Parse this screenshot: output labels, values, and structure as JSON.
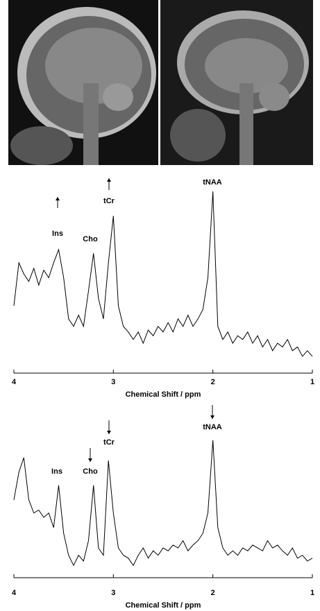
{
  "chart_data": [
    {
      "type": "line",
      "x_label": "Chemical Shift / ppm",
      "x": [
        4.0,
        3.95,
        3.9,
        3.85,
        3.8,
        3.75,
        3.7,
        3.65,
        3.6,
        3.55,
        3.5,
        3.45,
        3.4,
        3.35,
        3.3,
        3.25,
        3.2,
        3.15,
        3.1,
        3.05,
        3.0,
        2.95,
        2.9,
        2.85,
        2.8,
        2.75,
        2.7,
        2.65,
        2.6,
        2.55,
        2.5,
        2.45,
        2.4,
        2.35,
        2.3,
        2.25,
        2.2,
        2.15,
        2.1,
        2.05,
        2.0,
        1.95,
        1.9,
        1.85,
        1.8,
        1.75,
        1.7,
        1.65,
        1.6,
        1.55,
        1.5,
        1.45,
        1.4,
        1.35,
        1.3,
        1.25,
        1.2,
        1.15,
        1.1,
        1.05,
        1.0
      ],
      "values": [
        33,
        56,
        50,
        46,
        53,
        44,
        52,
        48,
        56,
        63,
        48,
        26,
        22,
        28,
        22,
        41,
        61,
        37,
        26,
        56,
        81,
        33,
        22,
        19,
        15,
        19,
        13,
        20,
        17,
        22,
        19,
        24,
        19,
        26,
        22,
        28,
        22,
        26,
        31,
        48,
        94,
        22,
        15,
        19,
        13,
        17,
        15,
        19,
        13,
        17,
        11,
        15,
        9,
        13,
        11,
        15,
        9,
        11,
        6,
        9,
        6
      ],
      "color": "#000000",
      "xlim": [
        4,
        1
      ],
      "ylim": [
        0,
        100
      ],
      "xticks": [
        4,
        3,
        2,
        1
      ],
      "annotations": [
        "Ins",
        "Cho",
        "tCr",
        "tNAA"
      ]
    },
    {
      "type": "line",
      "x_label": "Chemical Shift / ppm",
      "x": [
        4.0,
        3.95,
        3.9,
        3.85,
        3.8,
        3.75,
        3.7,
        3.65,
        3.6,
        3.55,
        3.5,
        3.45,
        3.4,
        3.35,
        3.3,
        3.25,
        3.2,
        3.15,
        3.1,
        3.05,
        3.0,
        2.95,
        2.9,
        2.85,
        2.8,
        2.75,
        2.7,
        2.65,
        2.6,
        2.55,
        2.5,
        2.45,
        2.4,
        2.35,
        2.3,
        2.25,
        2.2,
        2.15,
        2.1,
        2.05,
        2.0,
        1.95,
        1.9,
        1.85,
        1.8,
        1.75,
        1.7,
        1.65,
        1.6,
        1.55,
        1.5,
        1.45,
        1.4,
        1.35,
        1.3,
        1.25,
        1.2,
        1.15,
        1.1,
        1.05,
        1.0
      ],
      "values": [
        52,
        71,
        81,
        52,
        43,
        45,
        40,
        43,
        33,
        62,
        29,
        14,
        7,
        14,
        10,
        24,
        62,
        19,
        14,
        79,
        43,
        19,
        14,
        12,
        7,
        14,
        19,
        12,
        17,
        14,
        19,
        17,
        21,
        19,
        24,
        17,
        21,
        24,
        29,
        43,
        93,
        33,
        19,
        14,
        17,
        14,
        19,
        17,
        21,
        19,
        17,
        24,
        19,
        21,
        17,
        14,
        19,
        12,
        14,
        10,
        12
      ],
      "color": "#000000",
      "xlim": [
        4,
        1
      ],
      "ylim": [
        0,
        100
      ],
      "xticks": [
        4,
        3,
        2,
        1
      ],
      "annotations": [
        "Ins",
        "Cho",
        "tCr",
        "tNAA"
      ]
    }
  ]
}
